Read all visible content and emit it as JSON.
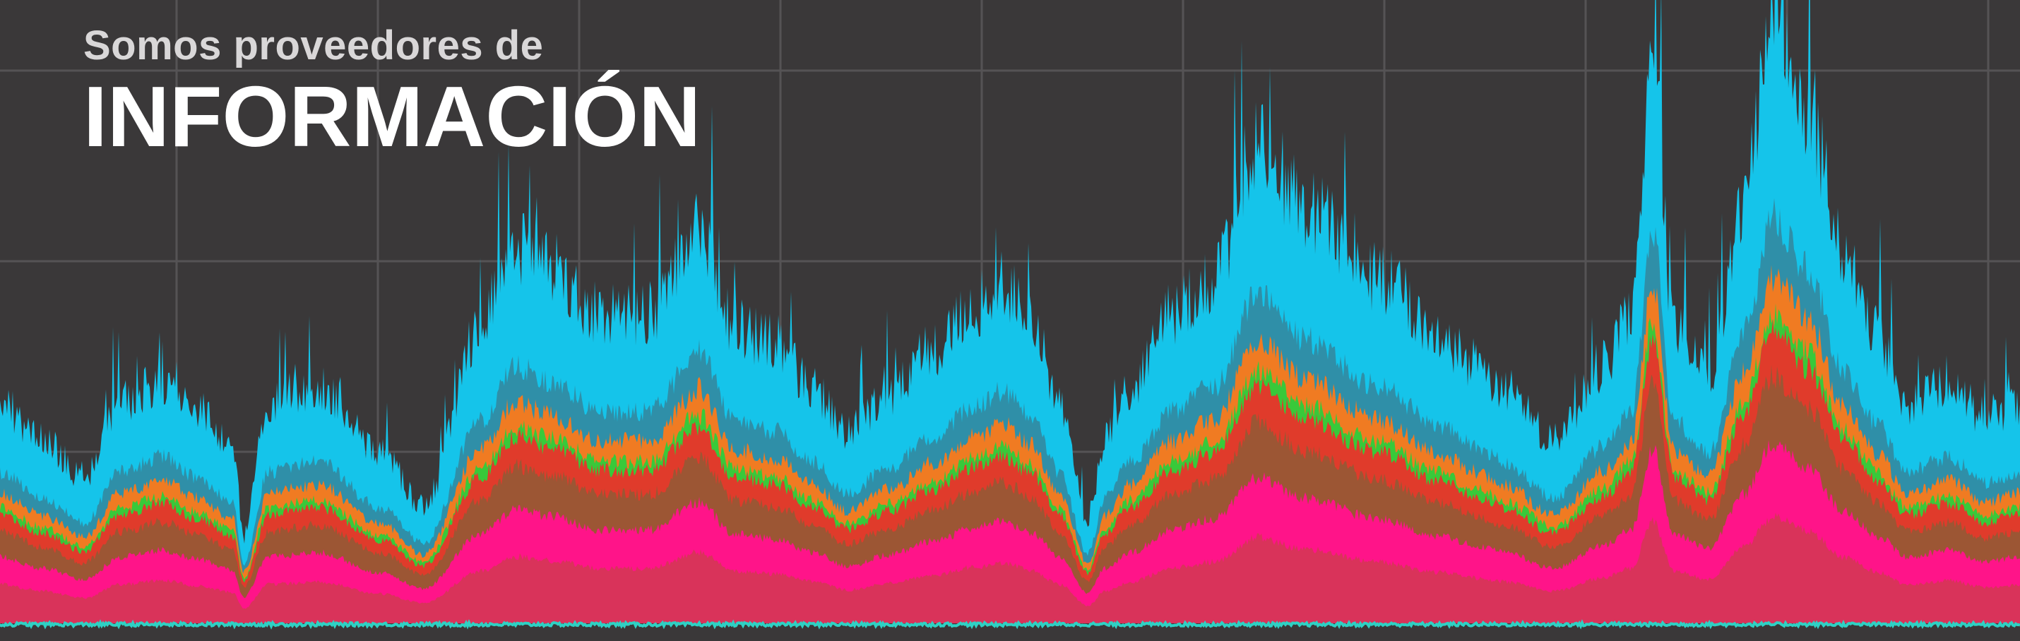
{
  "header": {
    "subtitle": "Somos proveedores de",
    "title": "INFORMACIÓN"
  },
  "chart_data": {
    "type": "area",
    "stacked": true,
    "grid": true,
    "legend": "none",
    "axis_labels": "none",
    "series": [
      {
        "color": "#d9335a"
      },
      {
        "color": "#ff1489"
      },
      {
        "color": "#9c5634"
      },
      {
        "color": "#e03b2b"
      },
      {
        "color": "#38c93a"
      },
      {
        "color": "#f07b22"
      },
      {
        "color": "#2f8fa8"
      },
      {
        "color": "#15c4ea"
      }
    ],
    "baseline_color": "#2ed1c4"
  }
}
